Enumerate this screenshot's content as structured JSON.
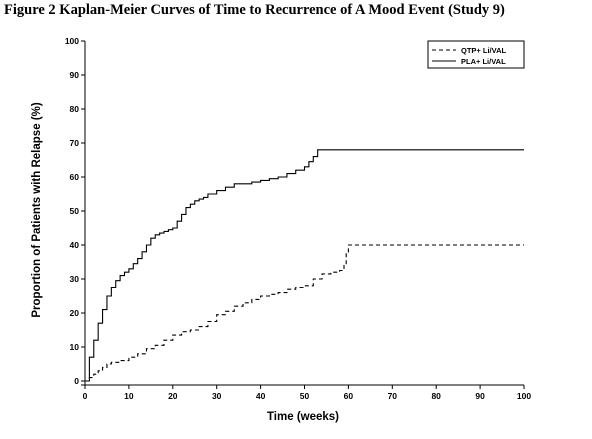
{
  "page": {
    "title": "Figure 2 Kaplan-Meier Curves of Time to Recurrence of A Mood Event (Study 9)"
  },
  "chart_data": {
    "type": "line",
    "title": "Figure 2 Kaplan-Meier Curves of Time to Recurrence of A Mood Event (Study 9)",
    "xlabel": "Time (weeks)",
    "ylabel": "Proportion of Patients with Relapse (%)",
    "xlim": [
      0,
      100
    ],
    "ylim": [
      0,
      100
    ],
    "x_ticks": [
      0,
      10,
      20,
      30,
      40,
      50,
      60,
      70,
      80,
      90,
      100
    ],
    "y_ticks": [
      0,
      10,
      20,
      30,
      40,
      50,
      60,
      70,
      80,
      90,
      100
    ],
    "x_tick_labels": [
      "0",
      "10",
      "20",
      "30",
      "40",
      "50",
      "60",
      "70",
      "80",
      "90",
      "100"
    ],
    "y_tick_labels": [
      "0",
      "10",
      "20",
      "30",
      "40",
      "50",
      "60",
      "70",
      "80",
      "90",
      "100"
    ],
    "grid": false,
    "legend_position": "top-right",
    "series": [
      {
        "name": "QTP+ Li/VAL",
        "line_style": "dashed",
        "color": "#000000",
        "x": [
          0,
          1,
          2,
          3,
          4,
          5,
          6,
          8,
          10,
          12,
          14,
          16,
          18,
          20,
          22,
          24,
          26,
          28,
          30,
          32,
          34,
          36,
          38,
          40,
          42,
          44,
          46,
          48,
          50,
          52,
          54,
          56,
          58,
          59,
          59.5,
          60,
          70,
          80,
          90,
          100
        ],
        "y": [
          0,
          1,
          2,
          3,
          4,
          5,
          5.5,
          6,
          7,
          8,
          9.5,
          10.5,
          12,
          13.5,
          14.5,
          15,
          16,
          17.5,
          19.5,
          20.5,
          22,
          23,
          24,
          25,
          25.5,
          26,
          27,
          27.5,
          28,
          30,
          31.5,
          32,
          32.5,
          34,
          38,
          40,
          40,
          40,
          40,
          40
        ]
      },
      {
        "name": "PLA+ Li/VAL",
        "line_style": "solid",
        "color": "#000000",
        "x": [
          0,
          1,
          2,
          3,
          4,
          5,
          6,
          7,
          8,
          9,
          10,
          11,
          12,
          13,
          14,
          15,
          16,
          17,
          18,
          19,
          20,
          21,
          22,
          23,
          24,
          25,
          26,
          27,
          28,
          30,
          32,
          34,
          36,
          38,
          40,
          42,
          44,
          46,
          48,
          50,
          51,
          52,
          53,
          60,
          70,
          80,
          90,
          100
        ],
        "y": [
          0,
          7,
          12,
          17,
          21,
          25,
          27.5,
          29.5,
          31,
          32,
          33,
          34.5,
          36,
          38,
          40,
          42,
          43,
          43.5,
          44,
          44.5,
          45,
          47,
          49,
          51,
          52,
          53,
          53.5,
          54,
          55,
          56,
          57,
          58,
          58,
          58.5,
          59,
          59.5,
          60,
          61,
          62,
          63,
          64.5,
          66,
          68,
          68,
          68,
          68,
          68,
          68
        ]
      }
    ]
  }
}
